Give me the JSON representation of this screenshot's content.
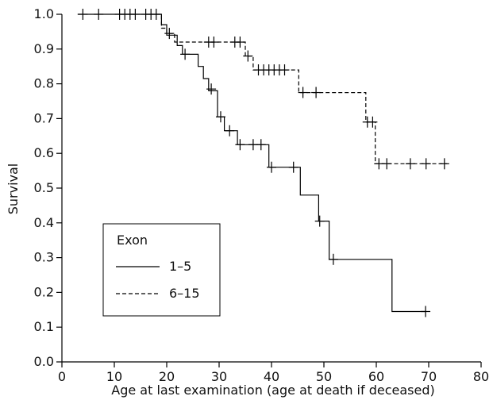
{
  "chart_data": {
    "type": "line",
    "title": "",
    "xlabel": "Age at last examination (age at death if deceased)",
    "ylabel": "Survival",
    "xlim": [
      0,
      80
    ],
    "ylim": [
      0,
      1.0
    ],
    "x_ticks": [
      0,
      10,
      20,
      30,
      40,
      50,
      60,
      70,
      80
    ],
    "y_ticks": [
      0.0,
      0.1,
      0.2,
      0.3,
      0.4,
      0.5,
      0.6,
      0.7,
      0.8,
      0.9,
      1.0
    ],
    "x_tick_labels": [
      "0",
      "10",
      "20",
      "30",
      "40",
      "50",
      "60",
      "70",
      "80"
    ],
    "y_tick_labels": [
      "0.0",
      "0.1",
      "0.2",
      "0.3",
      "0.4",
      "0.5",
      "0.6",
      "0.7",
      "0.8",
      "0.9",
      "1.0"
    ],
    "grid": false,
    "legend": {
      "title": "Exon",
      "position": "lower-left"
    },
    "series": [
      {
        "name": "1–5",
        "line_style": "solid",
        "step_points": [
          [
            3,
            1.0
          ],
          [
            19,
            1.0
          ],
          [
            19,
            0.97
          ],
          [
            20,
            0.97
          ],
          [
            20,
            0.94
          ],
          [
            22,
            0.94
          ],
          [
            22,
            0.91
          ],
          [
            23,
            0.91
          ],
          [
            23,
            0.885
          ],
          [
            26,
            0.885
          ],
          [
            26,
            0.85
          ],
          [
            27,
            0.85
          ],
          [
            27,
            0.815
          ],
          [
            28,
            0.815
          ],
          [
            28,
            0.78
          ],
          [
            29.7,
            0.78
          ],
          [
            29.7,
            0.705
          ],
          [
            31,
            0.705
          ],
          [
            31,
            0.665
          ],
          [
            33.5,
            0.665
          ],
          [
            33.5,
            0.625
          ],
          [
            39.5,
            0.625
          ],
          [
            39.5,
            0.56
          ],
          [
            45.5,
            0.56
          ],
          [
            45.5,
            0.48
          ],
          [
            49,
            0.48
          ],
          [
            49,
            0.405
          ],
          [
            51,
            0.405
          ],
          [
            51,
            0.295
          ],
          [
            63,
            0.295
          ],
          [
            63,
            0.145
          ],
          [
            69.5,
            0.145
          ]
        ],
        "censored": [
          [
            4,
            1.0
          ],
          [
            7,
            1.0
          ],
          [
            11,
            1.0
          ],
          [
            12,
            1.0
          ],
          [
            13,
            1.0
          ],
          [
            14,
            1.0
          ],
          [
            16,
            1.0
          ],
          [
            17,
            1.0
          ],
          [
            18,
            1.0
          ],
          [
            20.5,
            0.945
          ],
          [
            23.5,
            0.885
          ],
          [
            28.5,
            0.785
          ],
          [
            30.3,
            0.705
          ],
          [
            32,
            0.665
          ],
          [
            34,
            0.625
          ],
          [
            36.5,
            0.625
          ],
          [
            38,
            0.625
          ],
          [
            40,
            0.56
          ],
          [
            44.2,
            0.56
          ],
          [
            49.2,
            0.405
          ],
          [
            51.8,
            0.295
          ],
          [
            69.4,
            0.145
          ]
        ]
      },
      {
        "name": "6–15",
        "line_style": "dashed",
        "step_points": [
          [
            18,
            1.0
          ],
          [
            19,
            1.0
          ],
          [
            19,
            0.96
          ],
          [
            20,
            0.96
          ],
          [
            20,
            0.945
          ],
          [
            21.5,
            0.945
          ],
          [
            21.5,
            0.92
          ],
          [
            35,
            0.92
          ],
          [
            35,
            0.88
          ],
          [
            36.5,
            0.88
          ],
          [
            36.5,
            0.84
          ],
          [
            45.2,
            0.84
          ],
          [
            45.2,
            0.775
          ],
          [
            58,
            0.775
          ],
          [
            58,
            0.69
          ],
          [
            59.8,
            0.69
          ],
          [
            59.8,
            0.57
          ],
          [
            73.5,
            0.57
          ]
        ],
        "censored": [
          [
            28,
            0.92
          ],
          [
            29,
            0.92
          ],
          [
            33,
            0.92
          ],
          [
            34,
            0.92
          ],
          [
            35.5,
            0.88
          ],
          [
            37.5,
            0.84
          ],
          [
            38.5,
            0.84
          ],
          [
            39.5,
            0.84
          ],
          [
            40.5,
            0.84
          ],
          [
            41.5,
            0.84
          ],
          [
            42.5,
            0.84
          ],
          [
            46,
            0.775
          ],
          [
            48.5,
            0.775
          ],
          [
            58.3,
            0.69
          ],
          [
            59.3,
            0.69
          ],
          [
            60.5,
            0.57
          ],
          [
            62,
            0.57
          ],
          [
            66.5,
            0.57
          ],
          [
            69.5,
            0.57
          ],
          [
            73,
            0.57
          ]
        ]
      }
    ]
  }
}
